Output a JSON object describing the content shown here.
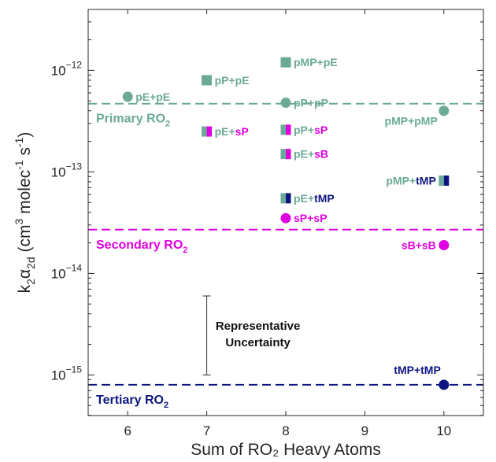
{
  "colors": {
    "primary": "#6aaa96",
    "secondary": "#e000e0",
    "tertiary": "#0d1680",
    "axis": "#262626"
  },
  "chart_data": {
    "type": "scatter",
    "title": "",
    "xlabel": "Sum of RO₂ Heavy Atoms",
    "ylabel": "k₂α₂d (cm³ molec⁻¹ s⁻¹)",
    "xlim": [
      5.5,
      10.5
    ],
    "ylim_log10": [
      -15.4,
      -11.4
    ],
    "y_scale": "log",
    "x_ticks": [
      6,
      7,
      8,
      9,
      10
    ],
    "y_ticks": [
      -15,
      -14,
      -13,
      -12
    ],
    "reference_lines": [
      {
        "label": "Primary RO",
        "sub": "2",
        "value": 4.7e-13,
        "color": "#6aaa96"
      },
      {
        "label": "Secondary RO",
        "sub": "2",
        "value": 2.7e-14,
        "color": "#e000e0"
      },
      {
        "label": "Tertiary RO",
        "sub": "2",
        "value": 8e-16,
        "color": "#0d1680"
      }
    ],
    "points": [
      {
        "x": 6,
        "y": 5.5e-13,
        "marker": "circle",
        "fill": [
          "#6aaa96"
        ],
        "label": [
          {
            "t": "pE+pE",
            "c": "#6aaa96"
          }
        ],
        "anchor": "right"
      },
      {
        "x": 7,
        "y": 8e-13,
        "marker": "square",
        "fill": [
          "#6aaa96"
        ],
        "label": [
          {
            "t": "pP+pE",
            "c": "#6aaa96"
          }
        ],
        "anchor": "right"
      },
      {
        "x": 7,
        "y": 2.5e-13,
        "marker": "square",
        "fill": [
          "#6aaa96",
          "#e000e0"
        ],
        "label": [
          {
            "t": "pE+",
            "c": "#6aaa96"
          },
          {
            "t": "sP",
            "c": "#e000e0"
          }
        ],
        "anchor": "right"
      },
      {
        "x": 8,
        "y": 1.2e-12,
        "marker": "square",
        "fill": [
          "#6aaa96"
        ],
        "label": [
          {
            "t": "pMP+pE",
            "c": "#6aaa96"
          }
        ],
        "anchor": "right"
      },
      {
        "x": 8,
        "y": 4.8e-13,
        "marker": "circle",
        "fill": [
          "#6aaa96"
        ],
        "label": [
          {
            "t": "pP+pP",
            "c": "#6aaa96"
          }
        ],
        "anchor": "right"
      },
      {
        "x": 8,
        "y": 2.6e-13,
        "marker": "square",
        "fill": [
          "#6aaa96",
          "#e000e0"
        ],
        "label": [
          {
            "t": "pP+",
            "c": "#6aaa96"
          },
          {
            "t": "sP",
            "c": "#e000e0"
          }
        ],
        "anchor": "right"
      },
      {
        "x": 8,
        "y": 1.5e-13,
        "marker": "square",
        "fill": [
          "#6aaa96",
          "#e000e0"
        ],
        "label": [
          {
            "t": "pE+",
            "c": "#6aaa96"
          },
          {
            "t": "sB",
            "c": "#e000e0"
          }
        ],
        "anchor": "right"
      },
      {
        "x": 8,
        "y": 5.5e-14,
        "marker": "square",
        "fill": [
          "#6aaa96",
          "#0d1680"
        ],
        "label": [
          {
            "t": "pE+",
            "c": "#6aaa96"
          },
          {
            "t": "tMP",
            "c": "#0d1680"
          }
        ],
        "anchor": "right"
      },
      {
        "x": 8,
        "y": 3.5e-14,
        "marker": "circle",
        "fill": [
          "#e000e0"
        ],
        "label": [
          {
            "t": "sP+sP",
            "c": "#e000e0"
          }
        ],
        "anchor": "right"
      },
      {
        "x": 10,
        "y": 4e-13,
        "marker": "circle",
        "fill": [
          "#6aaa96"
        ],
        "label": [
          {
            "t": "pMP+pMP",
            "c": "#6aaa96"
          }
        ],
        "anchor": "left-below"
      },
      {
        "x": 10,
        "y": 8.2e-14,
        "marker": "square",
        "fill": [
          "#6aaa96",
          "#0d1680"
        ],
        "label": [
          {
            "t": "pMP+",
            "c": "#6aaa96"
          },
          {
            "t": "tMP",
            "c": "#0d1680"
          }
        ],
        "anchor": "left"
      },
      {
        "x": 10,
        "y": 1.9e-14,
        "marker": "circle",
        "fill": [
          "#e000e0"
        ],
        "label": [
          {
            "t": "sB+sB",
            "c": "#e000e0"
          }
        ],
        "anchor": "left"
      },
      {
        "x": 10,
        "y": 8e-16,
        "marker": "circle",
        "fill": [
          "#0d1680"
        ],
        "label": [
          {
            "t": "tMP+tMP",
            "c": "#0d1680"
          }
        ],
        "anchor": "left-above"
      }
    ],
    "uncertainty": {
      "x": 7,
      "y_low": 1e-15,
      "y_high": 6e-15,
      "label_lines": [
        "Representative",
        "Uncertainty"
      ]
    }
  }
}
